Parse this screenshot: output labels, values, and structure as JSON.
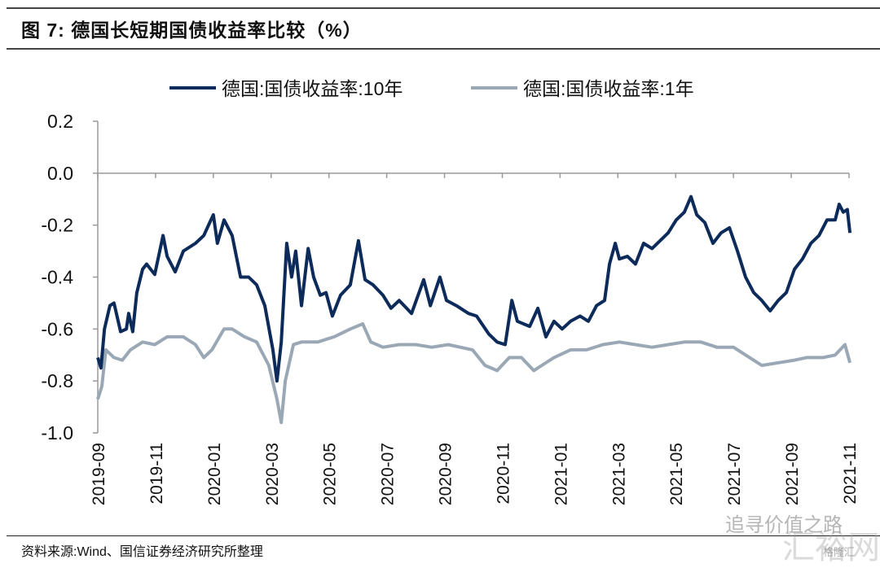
{
  "header": {
    "title": "图 7:  德国长短期国债收益率比较（%）"
  },
  "footer": {
    "source": "资料来源:Wind、国信证券经济研究所整理"
  },
  "watermark": {
    "account": "追寻价值之路",
    "site": "汇裕网",
    "brand": "格隆汇"
  },
  "chart_data": {
    "type": "line",
    "title": "德国长短期国债收益率比较（%）",
    "xlabel": "",
    "ylabel": "",
    "x_unit": "months since 2019-09",
    "xlim": [
      0,
      26
    ],
    "ylim": [
      -1.0,
      0.2
    ],
    "yticks": [
      0.2,
      0.0,
      -0.2,
      -0.4,
      -0.6,
      -0.8,
      -1.0
    ],
    "ytick_labels": [
      "0.2",
      "0.0",
      "-0.2",
      "-0.4",
      "-0.6",
      "-0.8",
      "-1.0"
    ],
    "xtick_labels": [
      "2019-09",
      "2019-11",
      "2020-01",
      "2020-03",
      "2020-05",
      "2020-07",
      "2020-09",
      "2020-11",
      "2021-01",
      "2021-03",
      "2021-05",
      "2021-07",
      "2021-09",
      "2021-11"
    ],
    "grid": false,
    "legend_position": "top-center",
    "series": [
      {
        "name": "德国:国债收益率:10年",
        "color": "#0d2b5a",
        "points": [
          [
            0,
            -0.71
          ],
          [
            0.11,
            -0.75
          ],
          [
            0.23,
            -0.6
          ],
          [
            0.42,
            -0.51
          ],
          [
            0.56,
            -0.5
          ],
          [
            0.79,
            -0.61
          ],
          [
            0.99,
            -0.6
          ],
          [
            1.07,
            -0.54
          ],
          [
            1.21,
            -0.61
          ],
          [
            1.35,
            -0.46
          ],
          [
            1.55,
            -0.37
          ],
          [
            1.69,
            -0.35
          ],
          [
            1.97,
            -0.39
          ],
          [
            2.26,
            -0.24
          ],
          [
            2.4,
            -0.32
          ],
          [
            2.68,
            -0.38
          ],
          [
            2.96,
            -0.3
          ],
          [
            3.38,
            -0.27
          ],
          [
            3.67,
            -0.24
          ],
          [
            4.0,
            -0.16
          ],
          [
            4.14,
            -0.27
          ],
          [
            4.37,
            -0.18
          ],
          [
            4.65,
            -0.24
          ],
          [
            4.94,
            -0.4
          ],
          [
            5.22,
            -0.4
          ],
          [
            5.5,
            -0.43
          ],
          [
            5.78,
            -0.51
          ],
          [
            6.06,
            -0.68
          ],
          [
            6.2,
            -0.8
          ],
          [
            6.35,
            -0.65
          ],
          [
            6.54,
            -0.27
          ],
          [
            6.71,
            -0.4
          ],
          [
            6.85,
            -0.3
          ],
          [
            7.05,
            -0.51
          ],
          [
            7.28,
            -0.29
          ],
          [
            7.47,
            -0.4
          ],
          [
            7.7,
            -0.47
          ],
          [
            7.9,
            -0.46
          ],
          [
            8.12,
            -0.55
          ],
          [
            8.4,
            -0.47
          ],
          [
            8.74,
            -0.43
          ],
          [
            9.02,
            -0.26
          ],
          [
            9.25,
            -0.41
          ],
          [
            9.53,
            -0.43
          ],
          [
            9.87,
            -0.47
          ],
          [
            10.15,
            -0.52
          ],
          [
            10.43,
            -0.49
          ],
          [
            10.86,
            -0.54
          ],
          [
            11.28,
            -0.41
          ],
          [
            11.51,
            -0.51
          ],
          [
            11.84,
            -0.4
          ],
          [
            12.07,
            -0.49
          ],
          [
            12.41,
            -0.51
          ],
          [
            12.83,
            -0.54
          ],
          [
            13.11,
            -0.55
          ],
          [
            13.54,
            -0.62
          ],
          [
            13.82,
            -0.65
          ],
          [
            14.1,
            -0.66
          ],
          [
            14.33,
            -0.49
          ],
          [
            14.52,
            -0.57
          ],
          [
            14.95,
            -0.59
          ],
          [
            15.23,
            -0.52
          ],
          [
            15.51,
            -0.63
          ],
          [
            15.79,
            -0.57
          ],
          [
            16.07,
            -0.6
          ],
          [
            16.36,
            -0.57
          ],
          [
            16.69,
            -0.55
          ],
          [
            16.98,
            -0.57
          ],
          [
            17.26,
            -0.51
          ],
          [
            17.54,
            -0.49
          ],
          [
            17.71,
            -0.35
          ],
          [
            17.91,
            -0.27
          ],
          [
            18.05,
            -0.33
          ],
          [
            18.33,
            -0.32
          ],
          [
            18.61,
            -0.35
          ],
          [
            18.89,
            -0.27
          ],
          [
            19.18,
            -0.29
          ],
          [
            19.46,
            -0.26
          ],
          [
            19.74,
            -0.23
          ],
          [
            20.02,
            -0.18
          ],
          [
            20.3,
            -0.15
          ],
          [
            20.53,
            -0.09
          ],
          [
            20.73,
            -0.16
          ],
          [
            21.01,
            -0.19
          ],
          [
            21.29,
            -0.27
          ],
          [
            21.57,
            -0.23
          ],
          [
            21.86,
            -0.21
          ],
          [
            22.14,
            -0.3
          ],
          [
            22.42,
            -0.4
          ],
          [
            22.7,
            -0.46
          ],
          [
            22.98,
            -0.49
          ],
          [
            23.27,
            -0.53
          ],
          [
            23.55,
            -0.49
          ],
          [
            23.83,
            -0.46
          ],
          [
            24.11,
            -0.37
          ],
          [
            24.39,
            -0.33
          ],
          [
            24.68,
            -0.27
          ],
          [
            24.96,
            -0.24
          ],
          [
            25.24,
            -0.18
          ],
          [
            25.52,
            -0.18
          ],
          [
            25.66,
            -0.12
          ],
          [
            25.8,
            -0.15
          ],
          [
            25.94,
            -0.14
          ],
          [
            26.03,
            -0.23
          ]
        ]
      },
      {
        "name": "德国:国债收益率:1年",
        "color": "#9aa8b6",
        "points": [
          [
            0,
            -0.87
          ],
          [
            0.14,
            -0.82
          ],
          [
            0.28,
            -0.68
          ],
          [
            0.56,
            -0.71
          ],
          [
            0.85,
            -0.72
          ],
          [
            1.13,
            -0.68
          ],
          [
            1.55,
            -0.65
          ],
          [
            1.97,
            -0.66
          ],
          [
            2.4,
            -0.63
          ],
          [
            2.96,
            -0.63
          ],
          [
            3.38,
            -0.66
          ],
          [
            3.67,
            -0.71
          ],
          [
            3.95,
            -0.68
          ],
          [
            4.37,
            -0.6
          ],
          [
            4.65,
            -0.6
          ],
          [
            5.08,
            -0.63
          ],
          [
            5.5,
            -0.65
          ],
          [
            5.92,
            -0.74
          ],
          [
            6.2,
            -0.87
          ],
          [
            6.35,
            -0.96
          ],
          [
            6.49,
            -0.8
          ],
          [
            6.77,
            -0.66
          ],
          [
            7.05,
            -0.65
          ],
          [
            7.61,
            -0.65
          ],
          [
            8.18,
            -0.63
          ],
          [
            8.74,
            -0.6
          ],
          [
            9.17,
            -0.58
          ],
          [
            9.45,
            -0.65
          ],
          [
            9.87,
            -0.67
          ],
          [
            10.43,
            -0.66
          ],
          [
            11.0,
            -0.66
          ],
          [
            11.56,
            -0.67
          ],
          [
            12.13,
            -0.66
          ],
          [
            12.97,
            -0.68
          ],
          [
            13.4,
            -0.74
          ],
          [
            13.82,
            -0.76
          ],
          [
            14.24,
            -0.71
          ],
          [
            14.66,
            -0.71
          ],
          [
            15.09,
            -0.76
          ],
          [
            15.37,
            -0.74
          ],
          [
            15.79,
            -0.71
          ],
          [
            16.36,
            -0.68
          ],
          [
            16.92,
            -0.68
          ],
          [
            17.48,
            -0.66
          ],
          [
            18.05,
            -0.65
          ],
          [
            18.61,
            -0.66
          ],
          [
            19.18,
            -0.67
          ],
          [
            19.74,
            -0.66
          ],
          [
            20.3,
            -0.65
          ],
          [
            20.87,
            -0.65
          ],
          [
            21.43,
            -0.67
          ],
          [
            22.0,
            -0.67
          ],
          [
            22.56,
            -0.71
          ],
          [
            22.98,
            -0.74
          ],
          [
            23.55,
            -0.73
          ],
          [
            24.11,
            -0.72
          ],
          [
            24.53,
            -0.71
          ],
          [
            25.1,
            -0.71
          ],
          [
            25.52,
            -0.7
          ],
          [
            25.86,
            -0.66
          ],
          [
            26.03,
            -0.73
          ]
        ]
      }
    ]
  }
}
